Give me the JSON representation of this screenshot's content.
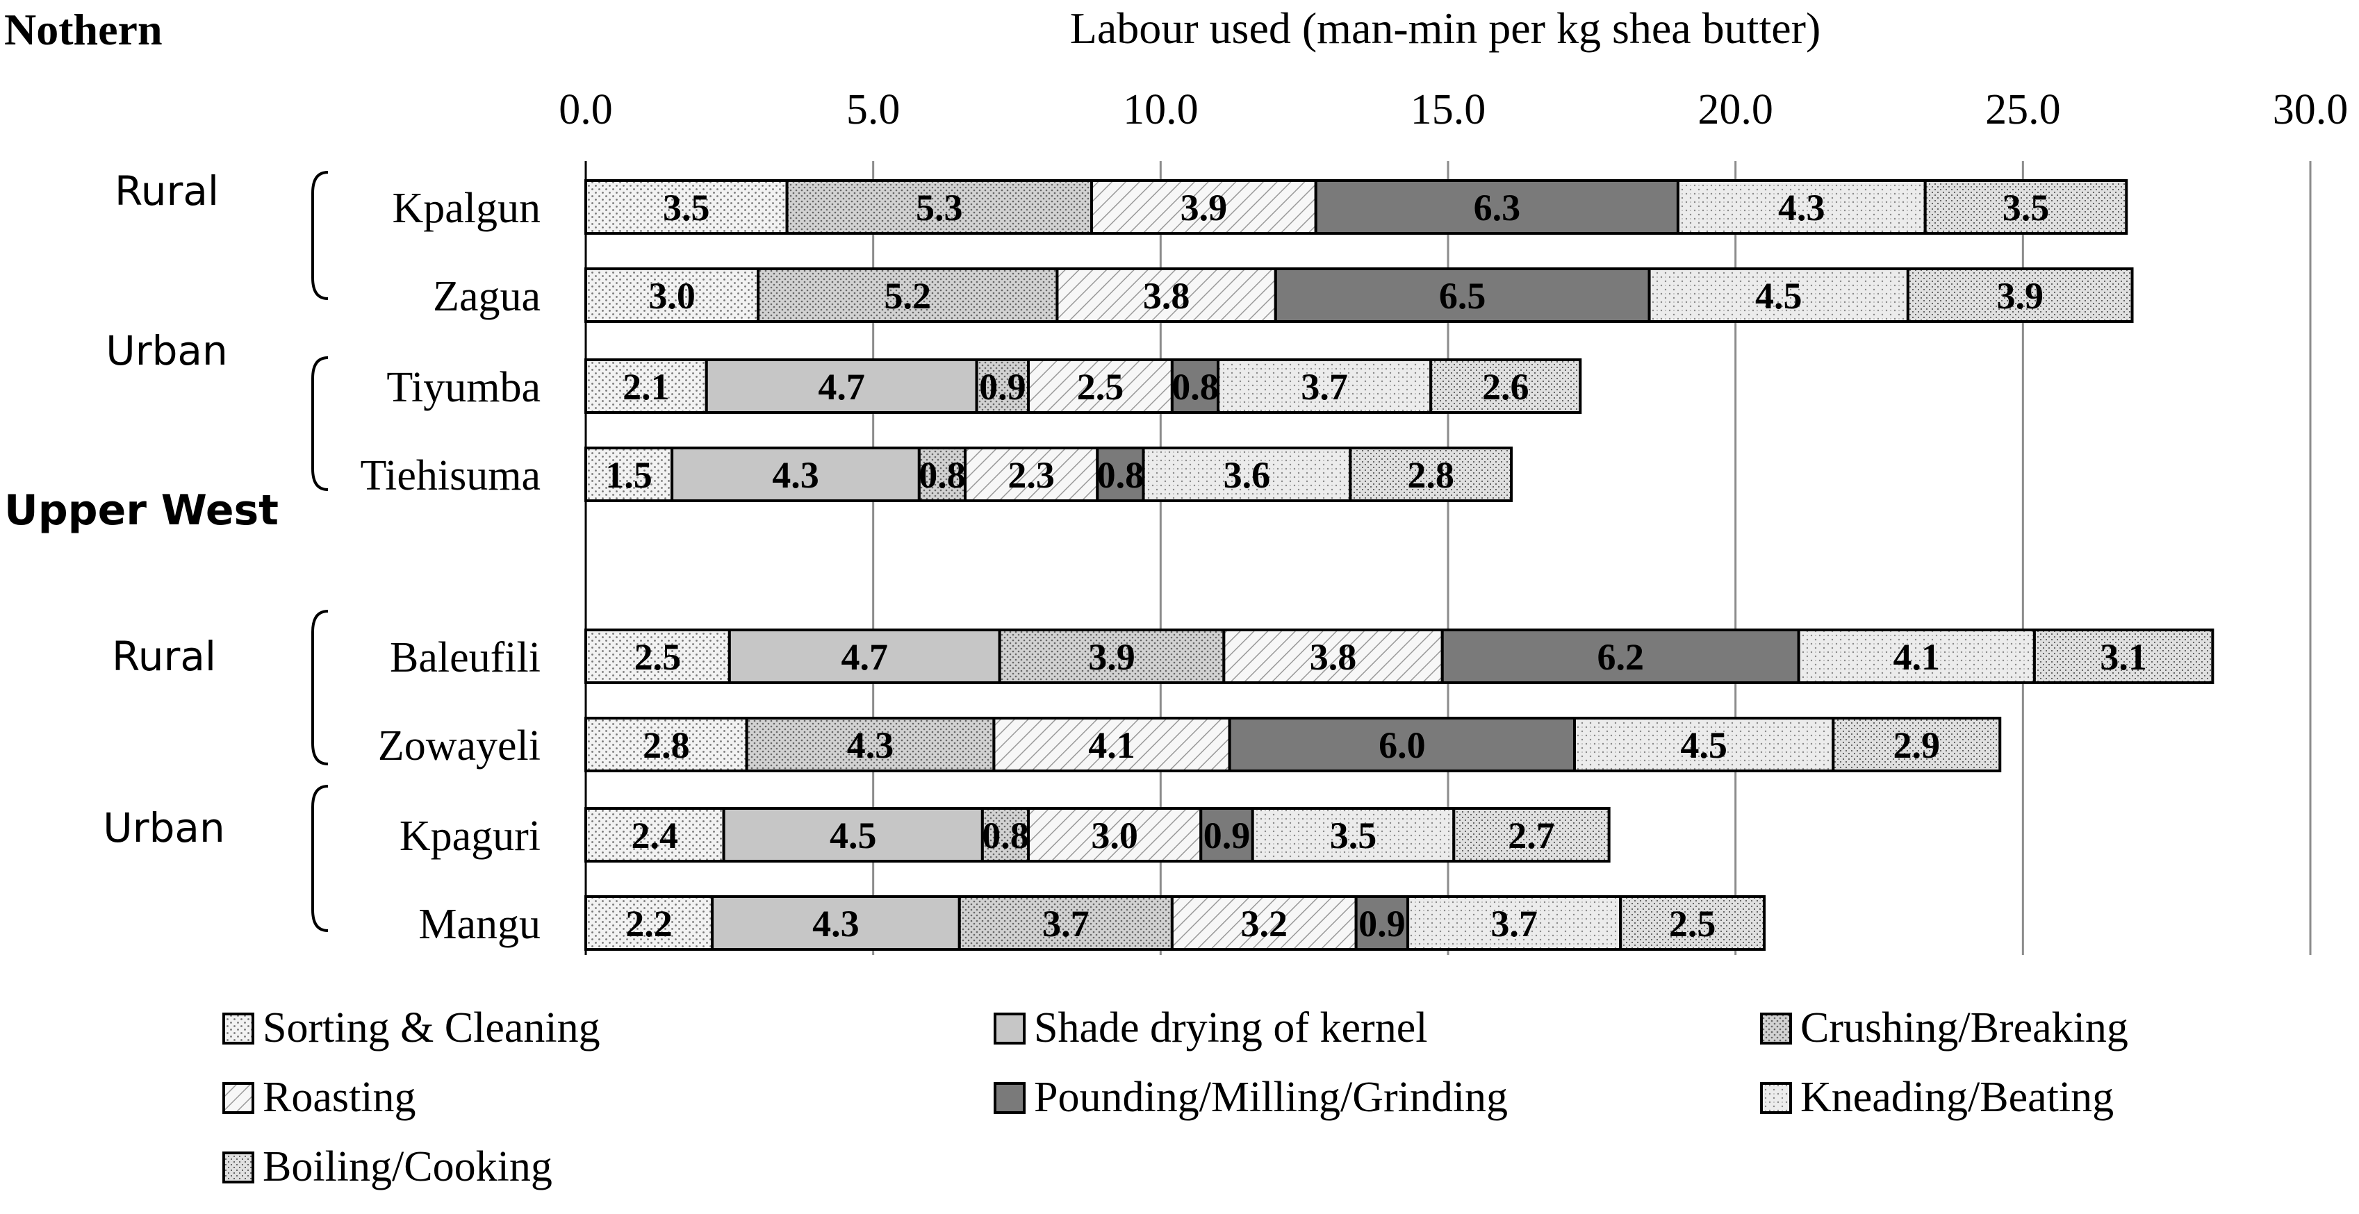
{
  "chart_data": {
    "type": "bar",
    "orientation": "horizontal",
    "stacked": true,
    "title": "",
    "xlabel": "Labour used (man-min per kg shea butter)",
    "xlim": [
      0,
      30
    ],
    "x_ticks": [
      "0.0",
      "5.0",
      "10.0",
      "15.0",
      "20.0",
      "25.0",
      "30.0"
    ],
    "x_axis_position": "top",
    "grid": "vertical",
    "legend_position": "bottom",
    "regions": [
      {
        "label": "Nothern",
        "groups": [
          {
            "label": "Rural",
            "categories": [
              "Kpalgun",
              "Zagua"
            ]
          },
          {
            "label": "Urban",
            "categories": [
              "Tiyumba",
              "Tiehisuma"
            ]
          }
        ]
      },
      {
        "label": "Upper West",
        "groups": [
          {
            "label": "Rural",
            "categories": [
              "Baleufili",
              "Zowayeli"
            ]
          },
          {
            "label": "Urban",
            "categories": [
              "Kpaguri",
              "Mangu"
            ]
          }
        ]
      }
    ],
    "series": [
      {
        "name": "Sorting & Cleaning",
        "color": "#eeeeee"
      },
      {
        "name": "Shade drying of kernel",
        "color": "#c8c8c8"
      },
      {
        "name": "Crushing/Breaking",
        "color": "#cfcfcf"
      },
      {
        "name": "Roasting",
        "color": "#f4f4f4"
      },
      {
        "name": "Pounding/Milling/Grinding",
        "color": "#7a7a7a"
      },
      {
        "name": "Kneading/Beating",
        "color": "#e8e8e8"
      },
      {
        "name": "Boiling/Cooking",
        "color": "#dedede"
      }
    ],
    "bars": [
      {
        "category": "Kpalgun",
        "segments": [
          {
            "series": 0,
            "value": 3.5,
            "label": "3.5"
          },
          {
            "series": 2,
            "value": 5.3,
            "label": "5.3"
          },
          {
            "series": 3,
            "value": 3.9,
            "label": "3.9"
          },
          {
            "series": 4,
            "value": 6.3,
            "label": "6.3"
          },
          {
            "series": 5,
            "value": 4.3,
            "label": "4.3"
          },
          {
            "series": 6,
            "value": 3.5,
            "label": "3.5"
          }
        ]
      },
      {
        "category": "Zagua",
        "segments": [
          {
            "series": 0,
            "value": 3.0,
            "label": "3.0"
          },
          {
            "series": 2,
            "value": 5.2,
            "label": "5.2"
          },
          {
            "series": 3,
            "value": 3.8,
            "label": "3.8"
          },
          {
            "series": 4,
            "value": 6.5,
            "label": "6.5"
          },
          {
            "series": 5,
            "value": 4.5,
            "label": "4.5"
          },
          {
            "series": 6,
            "value": 3.9,
            "label": "3.9"
          }
        ]
      },
      {
        "category": "Tiyumba",
        "segments": [
          {
            "series": 0,
            "value": 2.1,
            "label": "2.1"
          },
          {
            "series": 1,
            "value": 4.7,
            "label": "4.7"
          },
          {
            "series": 2,
            "value": 0.9,
            "label": "0.9"
          },
          {
            "series": 3,
            "value": 2.5,
            "label": "2.5"
          },
          {
            "series": 4,
            "value": 0.8,
            "label": "0.8"
          },
          {
            "series": 5,
            "value": 3.7,
            "label": "3.7"
          },
          {
            "series": 6,
            "value": 2.6,
            "label": "2.6"
          }
        ]
      },
      {
        "category": "Tiehisuma",
        "segments": [
          {
            "series": 0,
            "value": 1.5,
            "label": "1.5"
          },
          {
            "series": 1,
            "value": 4.3,
            "label": "4.3"
          },
          {
            "series": 2,
            "value": 0.8,
            "label": "0.8"
          },
          {
            "series": 3,
            "value": 2.3,
            "label": "2.3"
          },
          {
            "series": 4,
            "value": 0.8,
            "label": "0.8"
          },
          {
            "series": 5,
            "value": 3.6,
            "label": "3.6"
          },
          {
            "series": 6,
            "value": 2.8,
            "label": "2.8"
          }
        ]
      },
      {
        "category": "Baleufili",
        "segments": [
          {
            "series": 0,
            "value": 2.5,
            "label": "2.5"
          },
          {
            "series": 1,
            "value": 4.7,
            "label": "4.7"
          },
          {
            "series": 2,
            "value": 3.9,
            "label": "3.9"
          },
          {
            "series": 3,
            "value": 3.8,
            "label": "3.8"
          },
          {
            "series": 4,
            "value": 6.2,
            "label": "6.2"
          },
          {
            "series": 5,
            "value": 4.1,
            "label": "4.1"
          },
          {
            "series": 6,
            "value": 3.1,
            "label": "3.1"
          }
        ]
      },
      {
        "category": "Zowayeli",
        "segments": [
          {
            "series": 0,
            "value": 2.8,
            "label": "2.8"
          },
          {
            "series": 2,
            "value": 4.3,
            "label": "4.3"
          },
          {
            "series": 3,
            "value": 4.1,
            "label": "4.1"
          },
          {
            "series": 4,
            "value": 6.0,
            "label": "6.0"
          },
          {
            "series": 5,
            "value": 4.5,
            "label": "4.5"
          },
          {
            "series": 6,
            "value": 2.9,
            "label": "2.9"
          }
        ]
      },
      {
        "category": "Kpaguri",
        "segments": [
          {
            "series": 0,
            "value": 2.4,
            "label": "2.4"
          },
          {
            "series": 1,
            "value": 4.5,
            "label": "4.5"
          },
          {
            "series": 2,
            "value": 0.8,
            "label": "0.8"
          },
          {
            "series": 3,
            "value": 3.0,
            "label": "3.0"
          },
          {
            "series": 4,
            "value": 0.9,
            "label": "0.9"
          },
          {
            "series": 5,
            "value": 3.5,
            "label": "3.5"
          },
          {
            "series": 6,
            "value": 2.7,
            "label": "2.7"
          }
        ]
      },
      {
        "category": "Mangu",
        "segments": [
          {
            "series": 0,
            "value": 2.2,
            "label": "2.2"
          },
          {
            "series": 1,
            "value": 4.3,
            "label": "4.3"
          },
          {
            "series": 2,
            "value": 3.7,
            "label": "3.7"
          },
          {
            "series": 3,
            "value": 3.2,
            "label": "3.2"
          },
          {
            "series": 4,
            "value": 0.9,
            "label": "0.9"
          },
          {
            "series": 5,
            "value": 3.7,
            "label": "3.7"
          },
          {
            "series": 6,
            "value": 2.5,
            "label": "2.5"
          }
        ]
      }
    ]
  }
}
